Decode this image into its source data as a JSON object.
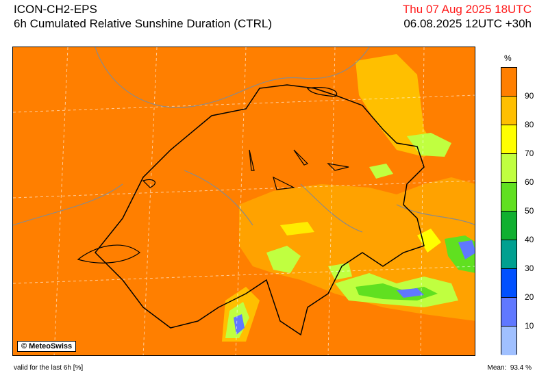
{
  "header": {
    "model": "ICON-CH2-EPS",
    "product": "6h Cumulated Relative Sunshine Duration (CTRL)",
    "valid_time": "Thu 07 Aug 2025 18UTC",
    "run_time": "06.08.2025 12UTC +30h"
  },
  "map": {
    "credit": "© MeteoSwiss",
    "background_color": "#ff7f00"
  },
  "legend": {
    "unit": "%",
    "bands": [
      {
        "label": "",
        "color": "#ff7f00"
      },
      {
        "label": "90",
        "color": "#ffbf00"
      },
      {
        "label": "80",
        "color": "#ffff00"
      },
      {
        "label": "70",
        "color": "#c0ff40"
      },
      {
        "label": "60",
        "color": "#60e020"
      },
      {
        "label": "50",
        "color": "#10b030"
      },
      {
        "label": "40",
        "color": "#00a090"
      },
      {
        "label": "30",
        "color": "#0050ff"
      },
      {
        "label": "20",
        "color": "#6078ff"
      },
      {
        "label": "10",
        "color": "#a0c0ff"
      }
    ]
  },
  "footer": {
    "valid_note": "valid for the last 6h [%]",
    "mean_label": "Mean:",
    "mean_value": "93.4 %"
  }
}
